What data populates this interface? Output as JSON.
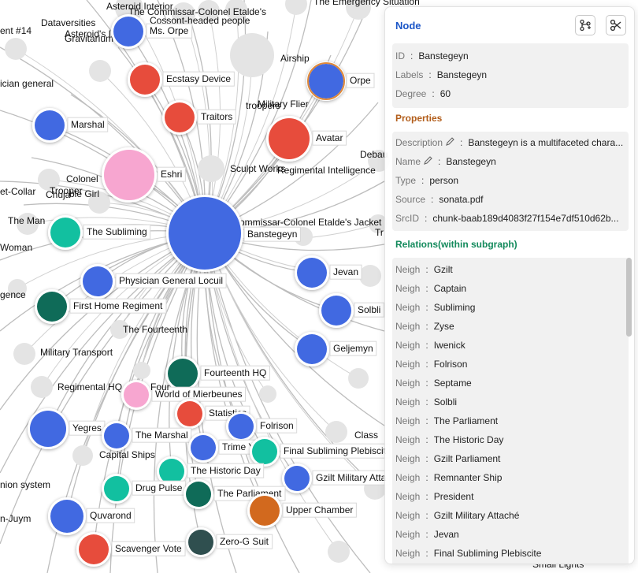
{
  "graph": {
    "edge_color": "#bdbdbd",
    "label_only": [
      {
        "id": "l1",
        "text": "Asteroid Interior"
      },
      {
        "id": "l2",
        "text": "The Commissar-Colonel Etalde's"
      },
      {
        "id": "l3",
        "text": "Cossont-headed people"
      },
      {
        "id": "l4",
        "text": "Dataversities"
      },
      {
        "id": "l5",
        "text": "Asteroid's Interior"
      },
      {
        "id": "l6",
        "text": "Gravitarium"
      },
      {
        "id": "l7",
        "text": "ent #14"
      },
      {
        "id": "l8",
        "text": "ician general"
      },
      {
        "id": "l9",
        "text": "Airship"
      },
      {
        "id": "l10",
        "text": "Military Flier"
      },
      {
        "id": "l11",
        "text": "troopers"
      },
      {
        "id": "l12",
        "text": "Colonel"
      },
      {
        "id": "l13",
        "text": "Trooper"
      },
      {
        "id": "l14",
        "text": "Chuja"
      },
      {
        "id": "l15",
        "text": "ble Girl"
      },
      {
        "id": "l16",
        "text": "et-Collar"
      },
      {
        "id": "l17",
        "text": "Sculpt Works"
      },
      {
        "id": "l18",
        "text": "Regimental Intelligence"
      },
      {
        "id": "l19",
        "text": "Debau"
      },
      {
        "id": "l20",
        "text": "The Man"
      },
      {
        "id": "l21",
        "text": "ommissar-Colonel Etalde's Jacket"
      },
      {
        "id": "l22",
        "text": "Woman"
      },
      {
        "id": "l23",
        "text": "gence"
      },
      {
        "id": "l24",
        "text": "The Fourteenth"
      },
      {
        "id": "l25",
        "text": "Military Transport"
      },
      {
        "id": "l26",
        "text": "Regimental HQ"
      },
      {
        "id": "l27",
        "text": "Capital Ships"
      },
      {
        "id": "l28",
        "text": "Class"
      },
      {
        "id": "l29",
        "text": "nion system"
      },
      {
        "id": "l30",
        "text": "n-Juym"
      },
      {
        "id": "l31",
        "text": "The Emergency Situation"
      },
      {
        "id": "l32",
        "text": "Tr"
      },
      {
        "id": "l33",
        "text": "Small Lights"
      }
    ],
    "nodes": [
      {
        "id": "n0",
        "label": "Ms. Orpe",
        "color": "#4169e1"
      },
      {
        "id": "n1",
        "label": "Ecstasy Device",
        "color": "#e74c3c"
      },
      {
        "id": "n2",
        "label": "Orpe",
        "color": "#4169e1"
      },
      {
        "id": "n3",
        "label": "Marshal",
        "color": "#4169e1"
      },
      {
        "id": "n4",
        "label": "Traitors",
        "color": "#e74c3c"
      },
      {
        "id": "n5",
        "label": "Avatar",
        "color": "#e74c3c"
      },
      {
        "id": "n6",
        "label": "Eshri",
        "color": "#f7a6d0"
      },
      {
        "id": "n7",
        "label": "Banstegeyn",
        "color": "#4169e1"
      },
      {
        "id": "n8",
        "label": "The Subliming",
        "color": "#12c0a0"
      },
      {
        "id": "n9",
        "label": "Jevan",
        "color": "#4169e1"
      },
      {
        "id": "n10",
        "label": "Physician General Locuil",
        "color": "#4169e1"
      },
      {
        "id": "n11",
        "label": "First Home Regiment",
        "color": "#0f6b58"
      },
      {
        "id": "n12",
        "label": "Solbli",
        "color": "#4169e1"
      },
      {
        "id": "n13",
        "label": "Geljemyn",
        "color": "#4169e1"
      },
      {
        "id": "n14",
        "label": "Fourteenth HQ",
        "color": "#0f6b58"
      },
      {
        "id": "n15",
        "label": "World of Mierbeunes",
        "color": "#f7a6d0"
      },
      {
        "id": "n16",
        "label": "Statistics",
        "color": "#e74c3c"
      },
      {
        "id": "n17",
        "label": "Folrison",
        "color": "#4169e1"
      },
      {
        "id": "n18",
        "label": "Yegres",
        "color": "#4169e1"
      },
      {
        "id": "n19",
        "label": "The Marshal",
        "color": "#4169e1"
      },
      {
        "id": "n20",
        "label": "Trime Y",
        "color": "#4169e1"
      },
      {
        "id": "n21",
        "label": "Final Subliming Plebiscit",
        "color": "#12c0a0"
      },
      {
        "id": "n22",
        "label": "The Historic Day",
        "color": "#12c0a0"
      },
      {
        "id": "n23",
        "label": "Drug Pulse",
        "color": "#12c0a0"
      },
      {
        "id": "n24",
        "label": "Gzilt Military Atta",
        "color": "#4169e1"
      },
      {
        "id": "n25",
        "label": "The Parliament",
        "color": "#0f6b58"
      },
      {
        "id": "n26",
        "label": "Upper Chamber",
        "color": "#d2691e"
      },
      {
        "id": "n27",
        "label": "Quvarond",
        "color": "#4169e1"
      },
      {
        "id": "n28",
        "label": "Zero-G Suit",
        "color": "#2f4f4f"
      },
      {
        "id": "n29",
        "label": "Scavenger Vote",
        "color": "#e74c3c"
      },
      {
        "id": "n30",
        "label": "Four",
        "color": "#0f6b58"
      }
    ]
  },
  "panel": {
    "title": "Node",
    "node": {
      "id_key": "ID",
      "id_val": "Banstegeyn",
      "labels_key": "Labels",
      "labels_val": "Banstegeyn",
      "degree_key": "Degree",
      "degree_val": "60"
    },
    "properties_title": "Properties",
    "properties_color": "#b25d1a",
    "properties": [
      {
        "key": "Description",
        "val": "Banstegeyn is a multifaceted chara...",
        "editable": true
      },
      {
        "key": "Name",
        "val": "Banstegeyn",
        "editable": true
      },
      {
        "key": "Type",
        "val": "person",
        "editable": false
      },
      {
        "key": "Source",
        "val": "sonata.pdf",
        "editable": false
      },
      {
        "key": "SrcID",
        "val": "chunk-baab189d4083f27f154e7df510d62b...",
        "editable": false
      }
    ],
    "relations_title": "Relations(within subgraph)",
    "relations_color": "#138a5c",
    "relation_key": "Neigh",
    "relations": [
      "Gzilt",
      "Captain",
      "Subliming",
      "Zyse",
      "Iwenick",
      "Folrison",
      "Septame",
      "Solbli",
      "The Parliament",
      "The Historic Day",
      "Gzilt Parliament",
      "Remnanter Ship",
      "President",
      "Gzilt Military Attaché",
      "Jevan",
      "Final Subliming Plebiscite"
    ]
  }
}
